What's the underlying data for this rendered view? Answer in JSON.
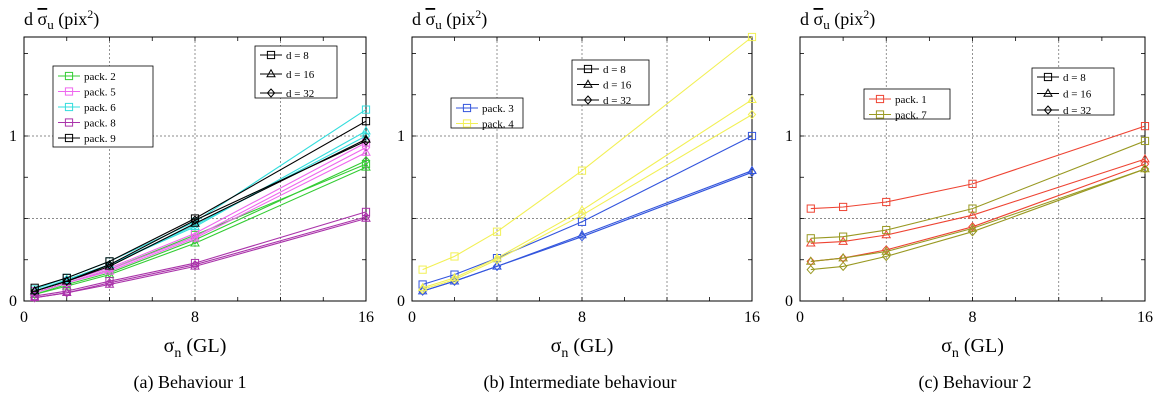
{
  "chart_data": [
    {
      "type": "line",
      "caption": "(a) Behaviour 1",
      "ylabel_main": "d ",
      "ylabel_sym": "σ",
      "ylabel_sub": "u",
      "ylabel_unit_pre": " (pix",
      "ylabel_unit_sup": "2",
      "ylabel_unit_post": ")",
      "xlabel_sym": "σ",
      "xlabel_sub": "n",
      "xlabel_unit": " (GL)",
      "x": [
        0.5,
        2,
        4,
        8,
        16
      ],
      "xlim": [
        0,
        16
      ],
      "ylim": [
        0,
        1.6
      ],
      "xticks": [
        {
          "v": 0,
          "label": "0"
        },
        {
          "v": 8,
          "label": "8"
        },
        {
          "v": 16,
          "label": "16"
        }
      ],
      "yticks": [
        {
          "v": 0,
          "label": "0"
        },
        {
          "v": 1,
          "label": "1"
        }
      ],
      "grid": true,
      "series": [
        {
          "name": "pack. 2",
          "color": "#33cc33",
          "d8": [
            0.05,
            0.11,
            0.19,
            0.4,
            0.83
          ],
          "d16": [
            0.04,
            0.09,
            0.16,
            0.35,
            0.81
          ],
          "d32": [
            0.04,
            0.1,
            0.17,
            0.37,
            0.85
          ]
        },
        {
          "name": "pack. 5",
          "color": "#ee66ee",
          "d8": [
            0.06,
            0.12,
            0.2,
            0.41,
            0.96
          ],
          "d16": [
            0.05,
            0.11,
            0.18,
            0.38,
            0.9
          ],
          "d32": [
            0.05,
            0.11,
            0.19,
            0.39,
            0.93
          ]
        },
        {
          "name": "pack. 6",
          "color": "#33dddd",
          "d8": [
            0.07,
            0.14,
            0.24,
            0.48,
            1.16
          ],
          "d16": [
            0.06,
            0.13,
            0.22,
            0.45,
            1.03
          ],
          "d32": [
            0.06,
            0.13,
            0.22,
            0.46,
            1.0
          ]
        },
        {
          "name": "pack. 8",
          "color": "#aa33aa",
          "d8": [
            0.03,
            0.06,
            0.12,
            0.23,
            0.54
          ],
          "d16": [
            0.02,
            0.05,
            0.1,
            0.21,
            0.5
          ],
          "d32": [
            0.02,
            0.05,
            0.11,
            0.22,
            0.51
          ]
        },
        {
          "name": "pack. 9",
          "color": "#000000",
          "d8": [
            0.08,
            0.14,
            0.24,
            0.5,
            1.09
          ],
          "d16": [
            0.06,
            0.12,
            0.21,
            0.47,
            0.98
          ],
          "d32": [
            0.06,
            0.12,
            0.22,
            0.49,
            0.97
          ]
        }
      ],
      "legend_packs": [
        "pack. 2",
        "pack. 5",
        "pack. 6",
        "pack. 8",
        "pack. 9"
      ],
      "legend_d": [
        "d = 8",
        "d = 16",
        "d = 32"
      ]
    },
    {
      "type": "line",
      "caption": "(b) Intermediate behaviour",
      "ylabel_main": "d ",
      "ylabel_sym": "σ",
      "ylabel_sub": "u",
      "ylabel_unit_pre": " (pix",
      "ylabel_unit_sup": "2",
      "ylabel_unit_post": ")",
      "xlabel_sym": "σ",
      "xlabel_sub": "n",
      "xlabel_unit": " (GL)",
      "x": [
        0.5,
        2,
        4,
        8,
        16
      ],
      "xlim": [
        0,
        16
      ],
      "ylim": [
        0,
        1.6
      ],
      "xticks": [
        {
          "v": 0,
          "label": "0"
        },
        {
          "v": 8,
          "label": "8"
        },
        {
          "v": 16,
          "label": "16"
        }
      ],
      "yticks": [
        {
          "v": 0,
          "label": "0"
        },
        {
          "v": 1,
          "label": "1"
        }
      ],
      "grid": true,
      "series": [
        {
          "name": "pack. 3",
          "color": "#3355dd",
          "d8": [
            0.1,
            0.16,
            0.26,
            0.48,
            1.0
          ],
          "d16": [
            0.06,
            0.12,
            0.21,
            0.4,
            0.79
          ],
          "d32": [
            0.06,
            0.12,
            0.21,
            0.39,
            0.78
          ]
        },
        {
          "name": "pack. 4",
          "color": "#f2f055",
          "d8": [
            0.19,
            0.27,
            0.42,
            0.79,
            1.6
          ],
          "d16": [
            0.08,
            0.14,
            0.26,
            0.55,
            1.22
          ],
          "d32": [
            0.07,
            0.13,
            0.25,
            0.52,
            1.13
          ]
        }
      ],
      "legend_packs": [
        "pack. 3",
        "pack. 4"
      ],
      "legend_d": [
        "d = 8",
        "d = 16",
        "d = 32"
      ]
    },
    {
      "type": "line",
      "caption": "(c) Behaviour 2",
      "ylabel_main": "d ",
      "ylabel_sym": "σ",
      "ylabel_sub": "u",
      "ylabel_unit_pre": " (pix",
      "ylabel_unit_sup": "2",
      "ylabel_unit_post": ")",
      "xlabel_sym": "σ",
      "xlabel_sub": "n",
      "xlabel_unit": " (GL)",
      "x": [
        0.5,
        2,
        4,
        8,
        16
      ],
      "xlim": [
        0,
        16
      ],
      "ylim": [
        0,
        1.6
      ],
      "xticks": [
        {
          "v": 0,
          "label": "0"
        },
        {
          "v": 8,
          "label": "8"
        },
        {
          "v": 16,
          "label": "16"
        }
      ],
      "yticks": [
        {
          "v": 0,
          "label": "0"
        },
        {
          "v": 1,
          "label": "1"
        }
      ],
      "grid": true,
      "series": [
        {
          "name": "pack. 1",
          "color": "#ee4433",
          "d8": [
            0.56,
            0.57,
            0.6,
            0.71,
            1.06
          ],
          "d16": [
            0.35,
            0.36,
            0.4,
            0.52,
            0.86
          ],
          "d32": [
            0.24,
            0.26,
            0.31,
            0.45,
            0.83
          ]
        },
        {
          "name": "pack. 7",
          "color": "#999922",
          "d8": [
            0.38,
            0.39,
            0.43,
            0.56,
            0.97
          ],
          "d16": [
            0.24,
            0.26,
            0.3,
            0.44,
            0.8
          ],
          "d32": [
            0.19,
            0.21,
            0.27,
            0.42,
            0.8
          ]
        }
      ],
      "legend_packs": [
        "pack. 1",
        "pack. 7"
      ],
      "legend_d": [
        "d = 8",
        "d = 16",
        "d = 32"
      ]
    }
  ]
}
